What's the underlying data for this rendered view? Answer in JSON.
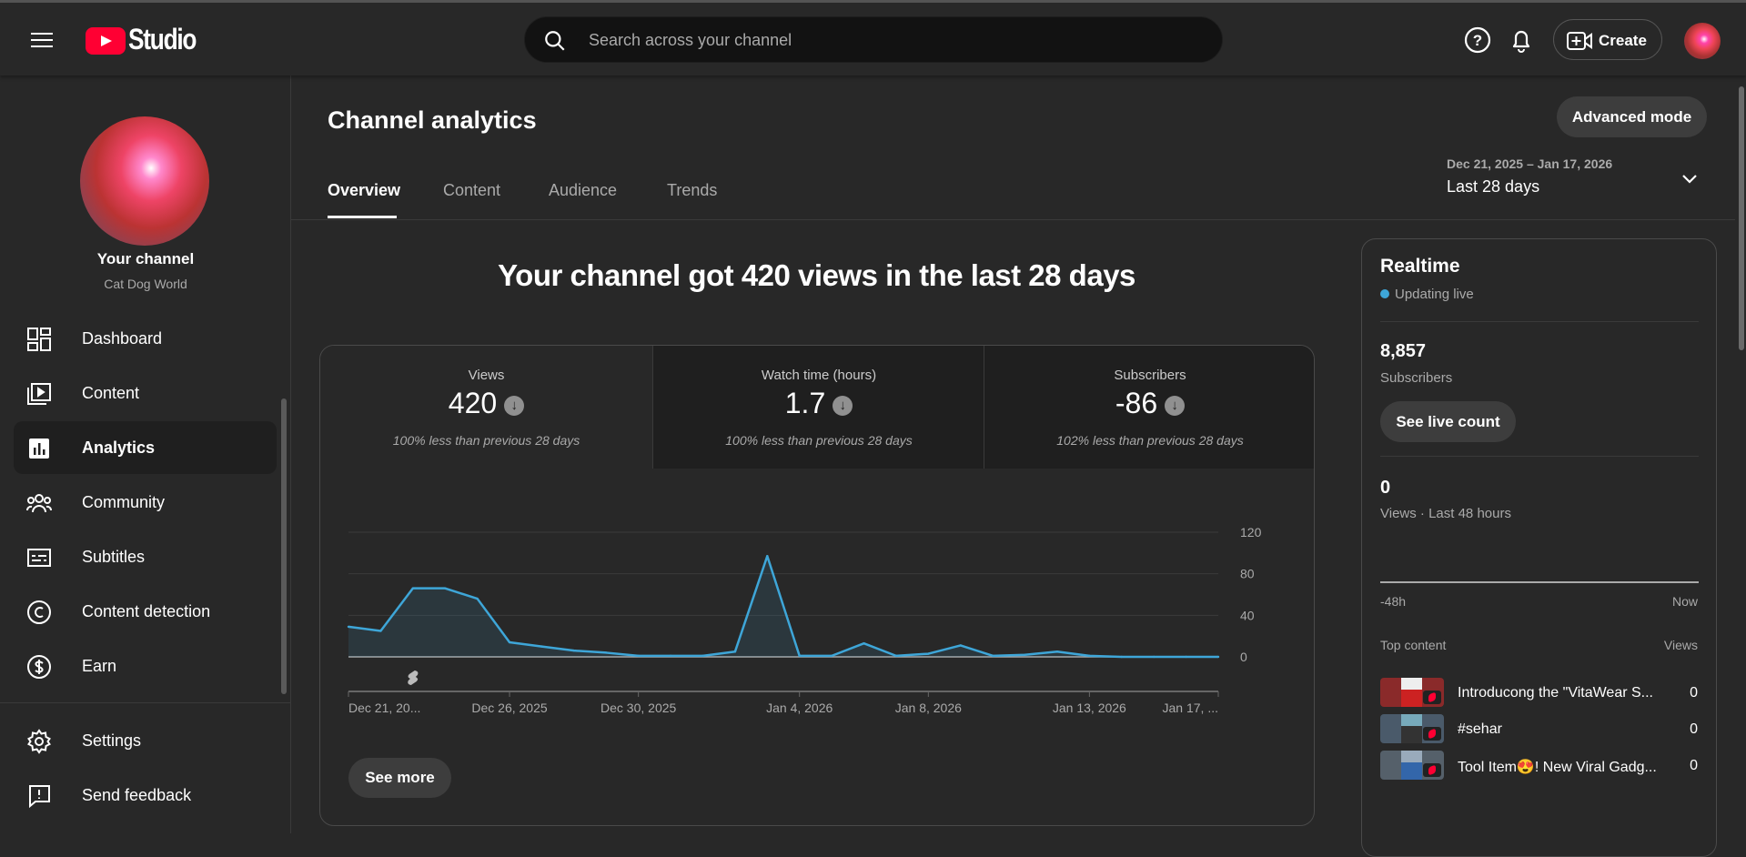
{
  "header": {
    "app_name": "Studio",
    "search_placeholder": "Search across your channel",
    "create_label": "Create"
  },
  "sidebar": {
    "channel_label": "Your channel",
    "channel_name": "Cat Dog World",
    "items": [
      {
        "label": "Dashboard",
        "icon": "dashboard-icon"
      },
      {
        "label": "Content",
        "icon": "content-icon"
      },
      {
        "label": "Analytics",
        "icon": "analytics-icon",
        "active": true
      },
      {
        "label": "Community",
        "icon": "community-icon"
      },
      {
        "label": "Subtitles",
        "icon": "subtitles-icon"
      },
      {
        "label": "Content detection",
        "icon": "copyright-icon"
      },
      {
        "label": "Earn",
        "icon": "dollar-icon"
      }
    ],
    "footer": [
      {
        "label": "Settings"
      },
      {
        "label": "Send feedback"
      }
    ]
  },
  "main": {
    "title": "Channel analytics",
    "advanced_mode": "Advanced mode",
    "tabs": [
      {
        "label": "Overview"
      },
      {
        "label": "Content"
      },
      {
        "label": "Audience"
      },
      {
        "label": "Trends"
      }
    ],
    "date_range": "Dec 21, 2025 – Jan 17, 2026",
    "period": "Last 28 days",
    "headline": "Your channel got 420 views in the last 28 days",
    "metrics": [
      {
        "label": "Views",
        "value": "420",
        "compare": "100% less than previous 28 days"
      },
      {
        "label": "Watch time (hours)",
        "value": "1.7",
        "compare": "100% less than previous 28 days"
      },
      {
        "label": "Subscribers",
        "value": "-86",
        "compare": "102% less than previous 28 days"
      }
    ],
    "see_more": "See more",
    "accent": "#3ea6d8"
  },
  "chart_data": {
    "type": "area",
    "title": "Views",
    "ylim": [
      0,
      120
    ],
    "yticks": [
      "0",
      "40",
      "80",
      "120"
    ],
    "values": [
      29,
      25,
      66,
      66,
      56,
      14,
      10,
      6,
      4,
      1,
      1,
      1,
      5,
      97,
      1,
      1,
      13,
      1,
      3,
      11,
      1,
      2,
      5,
      1,
      0,
      0,
      0,
      0
    ],
    "xticks": [
      {
        "i": 0,
        "label": "Dec 21, 20..."
      },
      {
        "i": 5,
        "label": "Dec 26, 2025"
      },
      {
        "i": 9,
        "label": "Dec 30, 2025"
      },
      {
        "i": 14,
        "label": "Jan 4, 2026"
      },
      {
        "i": 18,
        "label": "Jan 8, 2026"
      },
      {
        "i": 23,
        "label": "Jan 13, 2026"
      },
      {
        "i": 27,
        "label": "Jan 17, ..."
      }
    ],
    "markers": [
      {
        "i": 2,
        "type": "shorts-icon"
      }
    ]
  },
  "realtime": {
    "title": "Realtime",
    "status": "Updating live",
    "subscribers": "8,857",
    "subscribers_label": "Subscribers",
    "live_count": "See live count",
    "views": "0",
    "views_label": "Views · Last 48 hours",
    "axis_start": "-48h",
    "axis_end": "Now",
    "top_content_label": "Top content",
    "views_col": "Views",
    "top_content": [
      {
        "title": "Introducong the \"VitaWear S...",
        "views": "0",
        "color": "#8a2a2a"
      },
      {
        "title": "#sehar",
        "views": "0",
        "color": "#4a5a6a"
      },
      {
        "title": "Tool Item😍! New Viral Gadg...",
        "views": "0",
        "color": "#55606a"
      }
    ]
  }
}
